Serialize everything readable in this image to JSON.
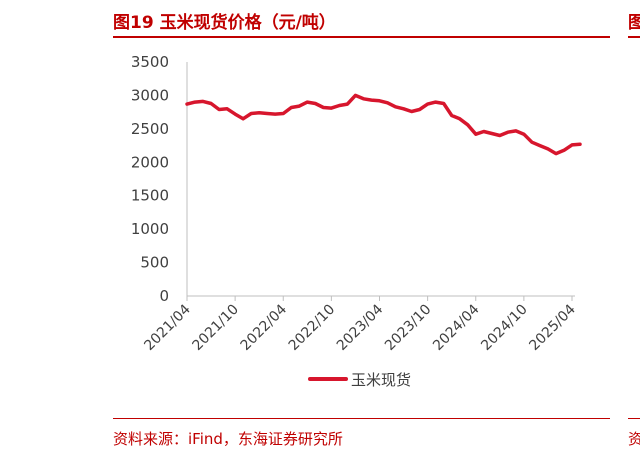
{
  "header": {
    "title": "图19 玉米现货价格（元/吨）",
    "edge_title_glyph": "图",
    "accent_color": "#c00000"
  },
  "footer": {
    "source": "资料来源：iFind，东海证券研究所",
    "edge_source_glyph": "资"
  },
  "chart_data": {
    "type": "line",
    "title": "",
    "xlabel": "",
    "ylabel": "",
    "ylim": [
      0,
      3500
    ],
    "yticks": [
      0,
      500,
      1000,
      1500,
      2000,
      2500,
      3000,
      3500
    ],
    "xticks": [
      "2021/04",
      "2021/10",
      "2022/04",
      "2022/10",
      "2023/04",
      "2023/10",
      "2024/04",
      "2024/10",
      "2025/04"
    ],
    "grid": false,
    "legend": "bottom-center",
    "series": [
      {
        "name": "玉米现货",
        "color": "#d7162d",
        "x": [
          "2021/04",
          "2021/05",
          "2021/06",
          "2021/07",
          "2021/08",
          "2021/09",
          "2021/10",
          "2021/11",
          "2021/12",
          "2022/01",
          "2022/02",
          "2022/03",
          "2022/04",
          "2022/05",
          "2022/06",
          "2022/07",
          "2022/08",
          "2022/09",
          "2022/10",
          "2022/11",
          "2022/12",
          "2023/01",
          "2023/02",
          "2023/03",
          "2023/04",
          "2023/05",
          "2023/06",
          "2023/07",
          "2023/08",
          "2023/09",
          "2023/10",
          "2023/11",
          "2023/12",
          "2024/01",
          "2024/02",
          "2024/03",
          "2024/04",
          "2024/05",
          "2024/06",
          "2024/07",
          "2024/08",
          "2024/09",
          "2024/10",
          "2024/11",
          "2024/12",
          "2025/01",
          "2025/02",
          "2025/03",
          "2025/04",
          "2025/05"
        ],
        "values": [
          2870,
          2900,
          2910,
          2880,
          2790,
          2800,
          2720,
          2650,
          2730,
          2740,
          2730,
          2720,
          2730,
          2820,
          2840,
          2900,
          2880,
          2820,
          2810,
          2850,
          2870,
          3000,
          2950,
          2930,
          2920,
          2890,
          2830,
          2800,
          2760,
          2790,
          2870,
          2900,
          2880,
          2700,
          2650,
          2560,
          2420,
          2460,
          2430,
          2400,
          2450,
          2470,
          2420,
          2300,
          2250,
          2200,
          2130,
          2180,
          2260,
          2270
        ]
      }
    ]
  }
}
